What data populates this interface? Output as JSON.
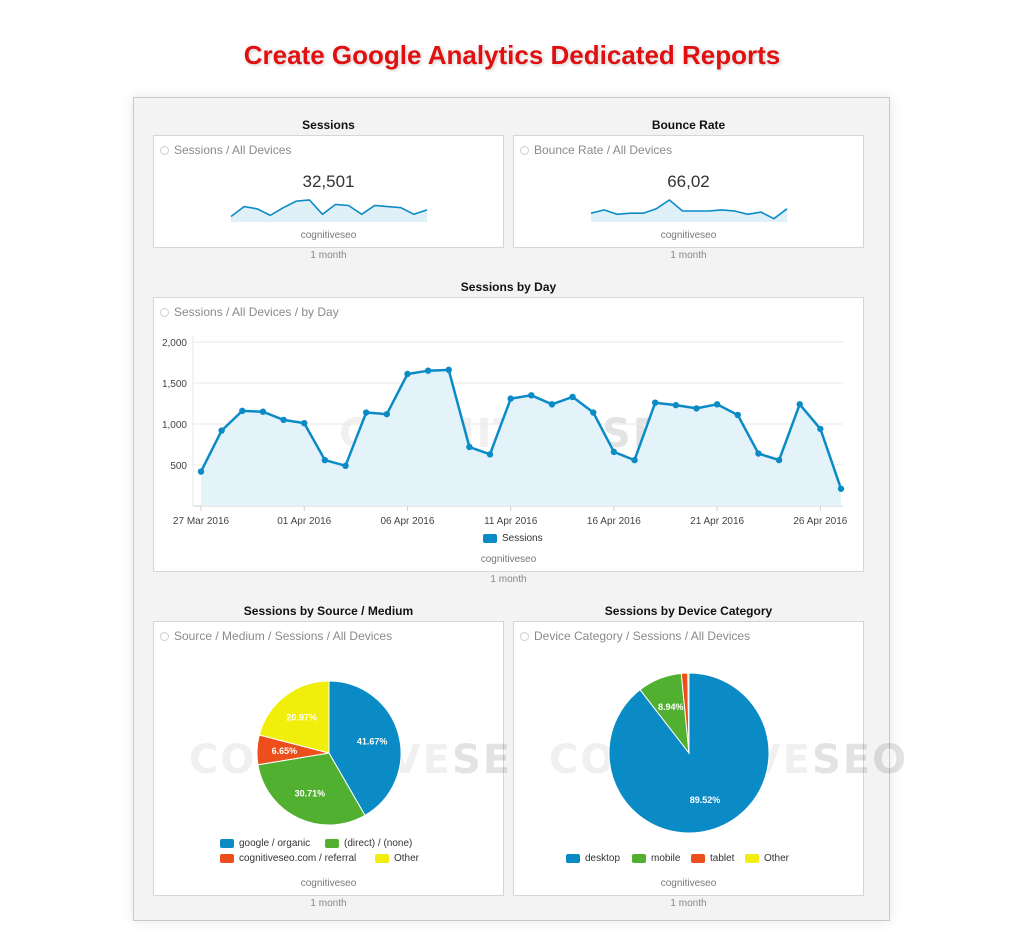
{
  "page_title": "Create Google Analytics Dedicated Reports",
  "widgets": {
    "sessions": {
      "title": "Sessions",
      "label": "Sessions / All Devices",
      "value": "32,501",
      "brand": "cognitiveseo",
      "period": "1 month",
      "sparkline": [
        5,
        14,
        12,
        6,
        13,
        19,
        20,
        7,
        16,
        15,
        7,
        15,
        14,
        13,
        7,
        11
      ]
    },
    "bounce": {
      "title": "Bounce Rate",
      "label": "Bounce Rate / All Devices",
      "value": "66,02",
      "brand": "cognitiveseo",
      "period": "1 month",
      "sparkline": [
        8,
        11,
        7,
        8,
        8,
        12,
        20,
        10,
        10,
        10,
        11,
        10,
        7,
        9,
        3,
        12
      ]
    },
    "by_day": {
      "title": "Sessions by Day",
      "label": "Sessions / All Devices / by Day",
      "brand": "cognitiveseo",
      "period": "1 month",
      "watermark_left": "COGNITIVE",
      "watermark_right": "SEO",
      "legend": "Sessions"
    },
    "source_medium": {
      "title": "Sessions by Source / Medium",
      "label": "Source / Medium / Sessions / All Devices",
      "brand": "cognitiveseo",
      "period": "1 month",
      "watermark_left": "COGNITIVE",
      "watermark_right": "SEO",
      "legend": [
        "google / organic",
        "(direct) / (none)",
        "cognitiveseo.com / referral",
        "Other"
      ]
    },
    "device": {
      "title": "Sessions by Device Category",
      "label": "Device Category / Sessions / All Devices",
      "brand": "cognitiveseo",
      "period": "1 month",
      "watermark_left": "COGNITIVE",
      "watermark_right": "SEO",
      "legend": [
        "desktop",
        "mobile",
        "tablet",
        "Other"
      ]
    }
  },
  "colors": {
    "blue": "#0a8bc6",
    "green": "#52b030",
    "orange": "#ec4f1c",
    "yellow": "#f0ee0a",
    "title_red": "#e01010"
  },
  "chart_data": [
    {
      "type": "area",
      "title": "Sessions by Day",
      "series": [
        {
          "name": "Sessions",
          "values": [
            420,
            920,
            1160,
            1150,
            1050,
            1010,
            560,
            490,
            1140,
            1120,
            1610,
            1650,
            1660,
            720,
            630,
            1310,
            1350,
            1240,
            1330,
            1140,
            660,
            560,
            1260,
            1230,
            1190,
            1240,
            1110,
            640,
            560,
            1240,
            940,
            210
          ]
        }
      ],
      "x": [
        "27 Mar 2016",
        "28 Mar 2016",
        "29 Mar 2016",
        "30 Mar 2016",
        "31 Mar 2016",
        "01 Apr 2016",
        "02 Apr 2016",
        "03 Apr 2016",
        "04 Apr 2016",
        "05 Apr 2016",
        "06 Apr 2016",
        "07 Apr 2016",
        "08 Apr 2016",
        "09 Apr 2016",
        "10 Apr 2016",
        "11 Apr 2016",
        "12 Apr 2016",
        "13 Apr 2016",
        "14 Apr 2016",
        "15 Apr 2016",
        "16 Apr 2016",
        "17 Apr 2016",
        "18 Apr 2016",
        "19 Apr 2016",
        "20 Apr 2016",
        "21 Apr 2016",
        "22 Apr 2016",
        "23 Apr 2016",
        "24 Apr 2016",
        "25 Apr 2016",
        "26 Apr 2016",
        "27 Apr 2016"
      ],
      "x_ticks": [
        "27 Mar 2016",
        "01 Apr 2016",
        "06 Apr 2016",
        "11 Apr 2016",
        "16 Apr 2016",
        "21 Apr 2016",
        "26 Apr 2016"
      ],
      "y_ticks": [
        "500",
        "1,000",
        "1,500",
        "2,000"
      ],
      "ylim": [
        0,
        2000
      ],
      "grid": true,
      "legend": "bottom-center"
    },
    {
      "type": "pie",
      "title": "Sessions by Source / Medium",
      "categories": [
        "google / organic",
        "(direct) / (none)",
        "cognitiveseo.com / referral",
        "Other"
      ],
      "values": [
        41.67,
        30.71,
        6.65,
        20.97
      ],
      "labels": [
        "41.67%",
        "30.71%",
        "6.65%",
        "20.97%"
      ],
      "legend": "bottom-center"
    },
    {
      "type": "pie",
      "title": "Sessions by Device Category",
      "categories": [
        "desktop",
        "mobile",
        "tablet",
        "Other"
      ],
      "values": [
        89.52,
        8.94,
        1.3,
        0.24
      ],
      "labels": [
        "89.52%",
        "8.94%",
        "",
        ""
      ],
      "legend": "bottom-center"
    }
  ]
}
